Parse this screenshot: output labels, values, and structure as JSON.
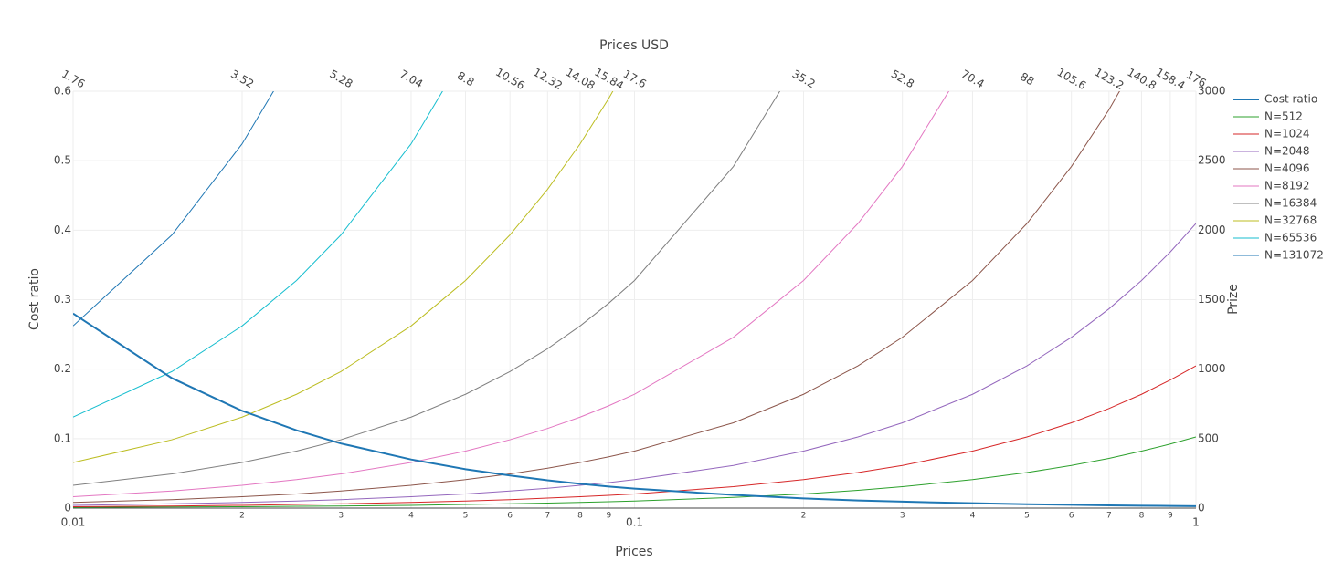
{
  "chart_data": {
    "type": "line",
    "x_title": "Prices",
    "x2_title": "Prices USD",
    "y_title": "Cost ratio",
    "y2_title": "Prize",
    "log_x": true,
    "grid": true,
    "legend": "right",
    "xlim": [
      0.01,
      1
    ],
    "xticks": [
      {
        "value": 0.01,
        "label": "0.01"
      },
      {
        "value": 0.02,
        "label": "2"
      },
      {
        "value": 0.03,
        "label": "3"
      },
      {
        "value": 0.04,
        "label": "4"
      },
      {
        "value": 0.05,
        "label": "5"
      },
      {
        "value": 0.06,
        "label": "6"
      },
      {
        "value": 0.07,
        "label": "7"
      },
      {
        "value": 0.08,
        "label": "8"
      },
      {
        "value": 0.09,
        "label": "9"
      },
      {
        "value": 0.1,
        "label": "0.1"
      },
      {
        "value": 0.2,
        "label": "2"
      },
      {
        "value": 0.3,
        "label": "3"
      },
      {
        "value": 0.4,
        "label": "4"
      },
      {
        "value": 0.5,
        "label": "5"
      },
      {
        "value": 0.6,
        "label": "6"
      },
      {
        "value": 0.7,
        "label": "7"
      },
      {
        "value": 0.8,
        "label": "8"
      },
      {
        "value": 0.9,
        "label": "9"
      },
      {
        "value": 1,
        "label": "1"
      }
    ],
    "x2lim": [
      1.76,
      176
    ],
    "x2ticks": [
      1.76,
      3.52,
      5.28,
      7.04,
      8.8,
      10.56,
      12.32,
      14.08,
      15.84,
      17.6,
      35.2,
      52.8,
      70.4,
      88,
      105.6,
      123.2,
      140.8,
      158.4,
      176
    ],
    "ylim": [
      0,
      0.6
    ],
    "yticks": [
      0,
      0.1,
      0.2,
      0.3,
      0.4,
      0.5,
      0.6
    ],
    "y2lim": [
      0,
      3000
    ],
    "y2ticks": [
      0,
      500,
      1000,
      1500,
      2000,
      2500,
      3000
    ],
    "x": [
      0.01,
      0.015,
      0.02,
      0.025,
      0.03,
      0.04,
      0.05,
      0.06,
      0.07,
      0.08,
      0.09,
      0.1,
      0.15,
      0.2,
      0.25,
      0.3,
      0.4,
      0.5,
      0.6,
      0.7,
      0.8,
      0.9,
      1
    ],
    "series": [
      {
        "name": "Cost ratio",
        "color": "#1f77b4",
        "axis": "y",
        "values": [
          0.28,
          0.187,
          0.14,
          0.112,
          0.093,
          0.07,
          0.056,
          0.047,
          0.04,
          0.035,
          0.031,
          0.028,
          0.019,
          0.014,
          0.011,
          0.0093,
          0.007,
          0.0056,
          0.0047,
          0.004,
          0.0035,
          0.0031,
          0.0028
        ]
      },
      {
        "name": "N=512",
        "color": "#2ca02c",
        "axis": "y2",
        "values": [
          5,
          8,
          10,
          13,
          15,
          20,
          26,
          31,
          36,
          41,
          46,
          51,
          77,
          102,
          128,
          154,
          205,
          256,
          307,
          358,
          410,
          461,
          512
        ]
      },
      {
        "name": "N=1024",
        "color": "#d62728",
        "axis": "y2",
        "values": [
          10,
          15,
          20,
          26,
          31,
          41,
          51,
          61,
          72,
          82,
          92,
          102,
          154,
          205,
          256,
          307,
          410,
          512,
          614,
          717,
          819,
          922,
          1024
        ]
      },
      {
        "name": "N=2048",
        "color": "#9467bd",
        "axis": "y2",
        "values": [
          20,
          31,
          41,
          51,
          61,
          82,
          102,
          123,
          143,
          164,
          184,
          205,
          307,
          410,
          512,
          614,
          819,
          1024,
          1229,
          1434,
          1638,
          1843,
          2048
        ]
      },
      {
        "name": "N=4096",
        "color": "#8c564b",
        "axis": "y2",
        "values": [
          41,
          61,
          82,
          102,
          123,
          164,
          205,
          246,
          287,
          328,
          369,
          410,
          614,
          819,
          1024,
          1229,
          1638,
          2048,
          2458,
          2867,
          3277,
          null,
          null
        ]
      },
      {
        "name": "N=8192",
        "color": "#e377c2",
        "axis": "y2",
        "values": [
          82,
          123,
          164,
          205,
          246,
          328,
          410,
          492,
          573,
          655,
          737,
          819,
          1229,
          1638,
          2048,
          2458,
          3277,
          null,
          null,
          null,
          null,
          null,
          null
        ]
      },
      {
        "name": "N=16384",
        "color": "#7f7f7f",
        "axis": "y2",
        "values": [
          164,
          246,
          328,
          410,
          492,
          655,
          819,
          983,
          1147,
          1311,
          1475,
          1638,
          2458,
          3277,
          null,
          null,
          null,
          null,
          null,
          null,
          null,
          null,
          null
        ]
      },
      {
        "name": "N=32768",
        "color": "#bcbd22",
        "axis": "y2",
        "values": [
          328,
          492,
          655,
          819,
          983,
          1311,
          1638,
          1966,
          2294,
          2621,
          2949,
          3277,
          null,
          null,
          null,
          null,
          null,
          null,
          null,
          null,
          null,
          null,
          null
        ]
      },
      {
        "name": "N=65536",
        "color": "#17becf",
        "axis": "y2",
        "values": [
          655,
          983,
          1311,
          1638,
          1966,
          2621,
          3277,
          null,
          null,
          null,
          null,
          null,
          null,
          null,
          null,
          null,
          null,
          null,
          null,
          null,
          null,
          null,
          null
        ]
      },
      {
        "name": "N=131072",
        "color": "#1f77b4",
        "axis": "y2",
        "values": [
          1311,
          1966,
          2621,
          3277,
          null,
          null,
          null,
          null,
          null,
          null,
          null,
          null,
          null,
          null,
          null,
          null,
          null,
          null,
          null,
          null,
          null,
          null,
          null
        ]
      }
    ]
  }
}
